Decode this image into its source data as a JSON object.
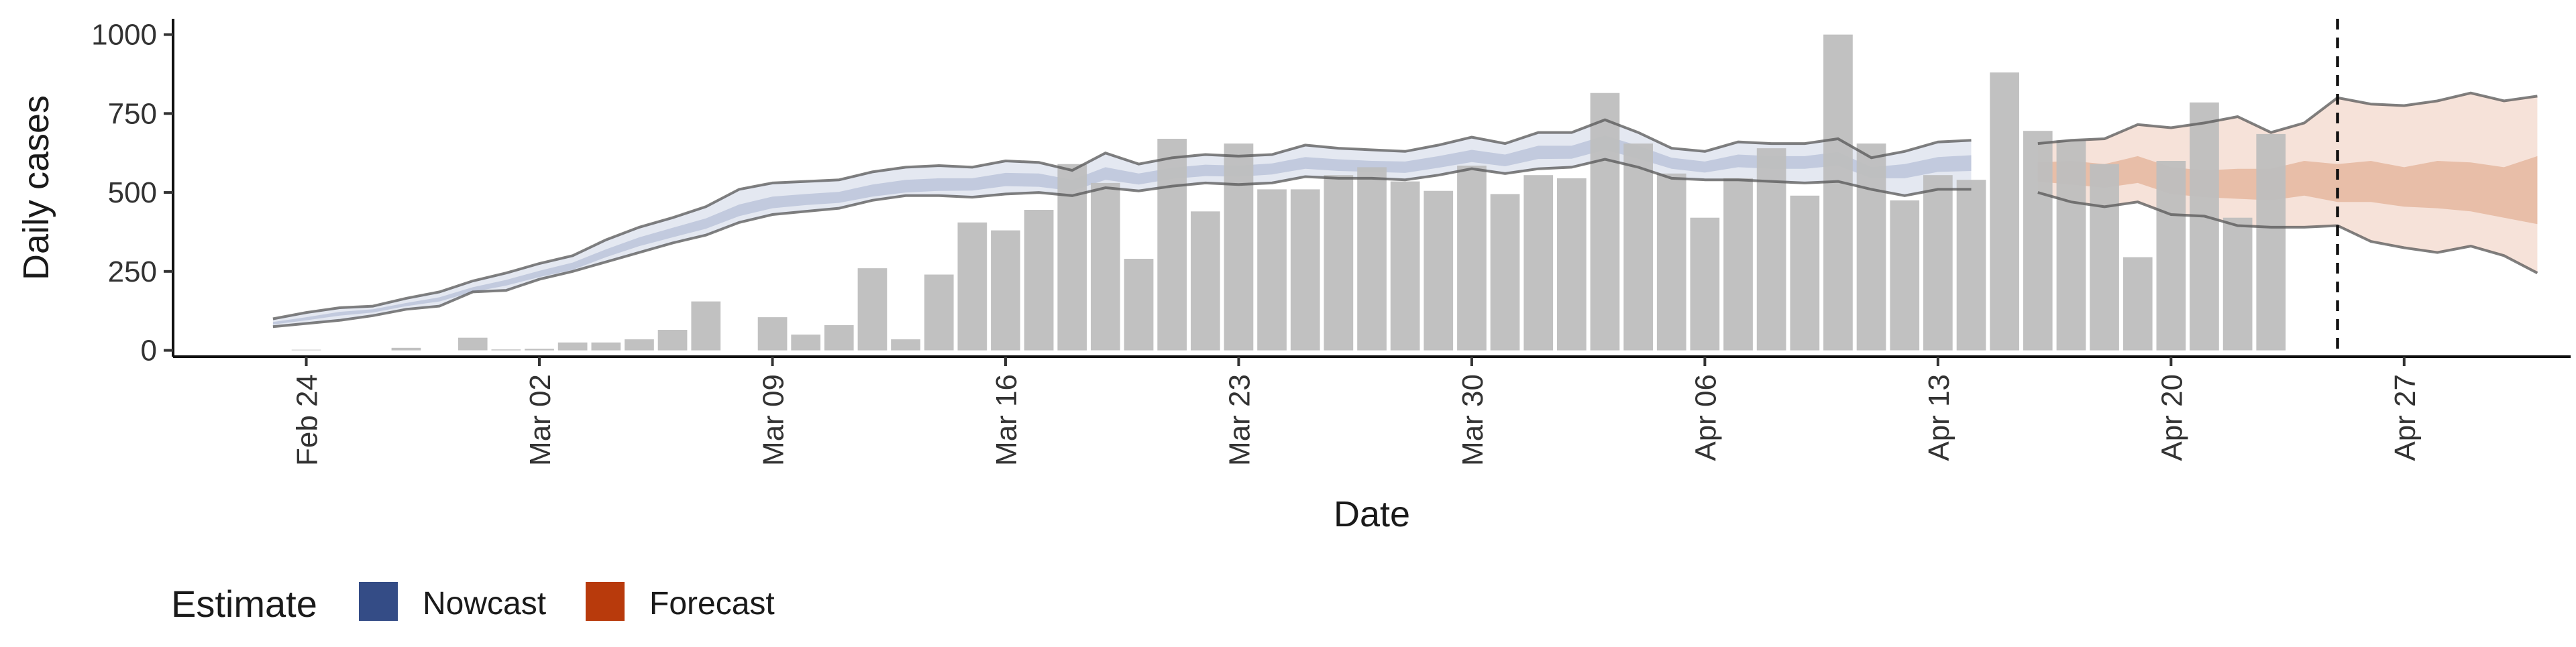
{
  "chart_data": {
    "type": "bar",
    "xlabel": "Date",
    "ylabel": "Daily cases",
    "ylim": [
      -20,
      1050
    ],
    "y_ticks": [
      0,
      250,
      500,
      750,
      1000
    ],
    "x_range": [
      "2020-02-20",
      "2020-05-02"
    ],
    "x_ticks": [
      {
        "date": "2020-02-24",
        "label": "Feb 24"
      },
      {
        "date": "2020-03-02",
        "label": "Mar 02"
      },
      {
        "date": "2020-03-09",
        "label": "Mar 09"
      },
      {
        "date": "2020-03-16",
        "label": "Mar 16"
      },
      {
        "date": "2020-03-23",
        "label": "Mar 23"
      },
      {
        "date": "2020-03-30",
        "label": "Mar 30"
      },
      {
        "date": "2020-04-06",
        "label": "Apr 06"
      },
      {
        "date": "2020-04-13",
        "label": "Apr 13"
      },
      {
        "date": "2020-04-20",
        "label": "Apr 20"
      },
      {
        "date": "2020-04-27",
        "label": "Apr 27"
      }
    ],
    "grid": false,
    "legend_placement": "bottom-left",
    "legend": {
      "title": "Estimate",
      "items": [
        {
          "label": "Nowcast",
          "color": "#344C86"
        },
        {
          "label": "Forecast",
          "color": "#B83A0C"
        }
      ]
    },
    "colors": {
      "bars": "#BEBEBE",
      "nowcast_outer": "#E4E8F1",
      "nowcast_inner": "#C2CADE",
      "forecast_outer": "#F6E2D9",
      "forecast_inner": "#E8BEA8",
      "bound_lines": "#555555"
    },
    "reported_cases": {
      "start_date": "2020-02-24",
      "values": [
        2,
        0,
        0,
        8,
        0,
        40,
        3,
        5,
        25,
        25,
        35,
        65,
        155,
        0,
        105,
        50,
        80,
        260,
        35,
        240,
        405,
        380,
        445,
        590,
        530,
        290,
        670,
        440,
        655,
        510,
        510,
        555,
        580,
        535,
        505,
        585,
        495,
        555,
        545,
        815,
        655,
        560,
        420,
        545,
        640,
        490,
        1000,
        655,
        475,
        555,
        540,
        880,
        695,
        665,
        590,
        295,
        600,
        785,
        420,
        685
      ]
    },
    "nowcast": {
      "start_date": "2020-02-23",
      "upper90": [
        100,
        120,
        135,
        140,
        165,
        185,
        220,
        245,
        275,
        300,
        350,
        390,
        420,
        455,
        510,
        530,
        535,
        540,
        565,
        580,
        585,
        580,
        600,
        595,
        570,
        625,
        590,
        610,
        620,
        615,
        620,
        650,
        640,
        635,
        630,
        650,
        675,
        655,
        690,
        690,
        730,
        690,
        640,
        630,
        660,
        655,
        655,
        670,
        610,
        630,
        660,
        665
      ],
      "upper50": [
        90,
        105,
        122,
        130,
        150,
        168,
        200,
        223,
        252,
        278,
        320,
        358,
        388,
        418,
        462,
        487,
        495,
        502,
        525,
        540,
        545,
        545,
        562,
        560,
        540,
        580,
        560,
        578,
        588,
        585,
        592,
        612,
        605,
        600,
        598,
        615,
        635,
        620,
        648,
        648,
        680,
        648,
        610,
        598,
        620,
        615,
        615,
        628,
        580,
        590,
        612,
        618
      ],
      "lower50": [
        82,
        95,
        110,
        120,
        140,
        155,
        185,
        205,
        232,
        255,
        295,
        330,
        358,
        385,
        425,
        450,
        460,
        467,
        487,
        500,
        505,
        506,
        520,
        518,
        505,
        540,
        525,
        543,
        552,
        550,
        557,
        575,
        568,
        565,
        562,
        578,
        596,
        583,
        606,
        607,
        635,
        607,
        575,
        563,
        580,
        575,
        575,
        585,
        545,
        545,
        565,
        568
      ],
      "lower90": [
        75,
        85,
        95,
        110,
        130,
        140,
        185,
        190,
        225,
        250,
        280,
        310,
        340,
        365,
        405,
        430,
        440,
        450,
        475,
        490,
        490,
        485,
        495,
        500,
        490,
        515,
        505,
        520,
        530,
        525,
        530,
        550,
        545,
        545,
        540,
        555,
        575,
        560,
        575,
        580,
        605,
        580,
        545,
        540,
        540,
        535,
        530,
        535,
        510,
        490,
        510,
        510
      ]
    },
    "forecast": {
      "start_date": "2020-04-16",
      "upper90": [
        655,
        665,
        670,
        715,
        705,
        720,
        740,
        690,
        720,
        800,
        780,
        775,
        790,
        815,
        790,
        805
      ],
      "upper50": [
        595,
        600,
        590,
        615,
        580,
        570,
        575,
        575,
        600,
        590,
        600,
        580,
        600,
        595,
        580,
        615
      ],
      "lower50": [
        535,
        525,
        515,
        530,
        495,
        485,
        480,
        475,
        490,
        470,
        470,
        455,
        450,
        440,
        420,
        400
      ],
      "lower90": [
        500,
        470,
        455,
        470,
        430,
        425,
        395,
        390,
        390,
        395,
        345,
        325,
        310,
        330,
        300,
        245
      ]
    },
    "forecast_date": "2020-04-25"
  }
}
